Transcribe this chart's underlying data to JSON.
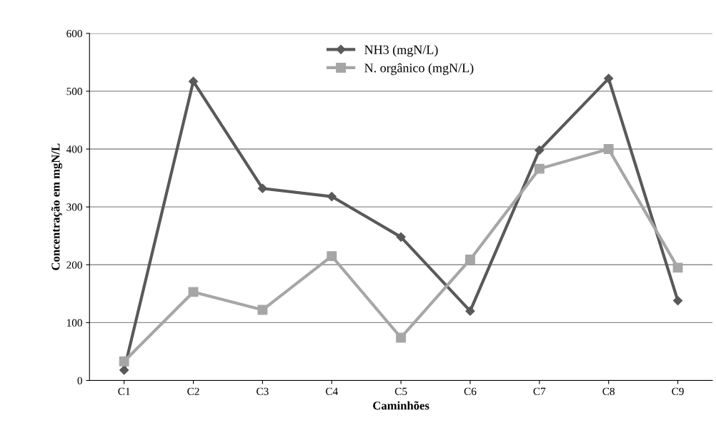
{
  "chart_data": {
    "type": "line",
    "xlabel": "Caminhões",
    "ylabel": "Concentração em mgN/L",
    "categories": [
      "C1",
      "C2",
      "C3",
      "C4",
      "C5",
      "C6",
      "C7",
      "C8",
      "C9"
    ],
    "series": [
      {
        "name": "NH3 (mgN/L)",
        "color": "#595959",
        "marker": "diamond",
        "values": [
          18,
          517,
          332,
          318,
          248,
          120,
          398,
          522,
          138
        ]
      },
      {
        "name": "N. orgânico (mgN/L)",
        "color": "#a6a6a6",
        "marker": "square",
        "values": [
          33,
          153,
          122,
          215,
          74,
          209,
          366,
          400,
          195
        ]
      }
    ],
    "ylim": [
      0,
      600
    ],
    "yticks": [
      0,
      100,
      200,
      300,
      400,
      500,
      600
    ],
    "grid": "y",
    "legend": "top",
    "line_style": "solid"
  }
}
